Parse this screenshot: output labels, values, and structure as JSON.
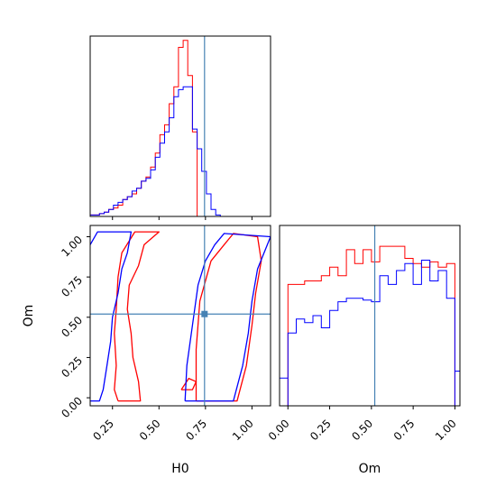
{
  "chart_data": [
    {
      "type": "histogram",
      "panel": "H0 marginal",
      "truth": 0.745,
      "series": [
        {
          "color": "#ff0000",
          "step": 0.025,
          "x_start": 0.13,
          "counts": [
            1,
            1,
            2,
            3,
            5,
            6,
            8,
            12,
            14,
            16,
            20,
            25,
            28,
            35,
            45,
            58,
            65,
            80,
            92,
            120,
            125,
            100,
            60,
            0,
            0,
            0,
            0,
            0
          ]
        },
        {
          "color": "#0000ff",
          "step": 0.025,
          "x_start": 0.13,
          "counts": [
            1,
            1,
            2,
            3,
            5,
            8,
            10,
            12,
            14,
            18,
            20,
            25,
            27,
            33,
            42,
            52,
            60,
            70,
            85,
            90,
            92,
            92,
            62,
            48,
            32,
            16,
            5,
            1
          ]
        }
      ]
    },
    {
      "type": "contour",
      "panel": "H0 vs Om",
      "xlabel": "H0",
      "ylabel": "Om",
      "xlim": [
        0.13,
        1.1
      ],
      "ylim": [
        -0.05,
        1.07
      ],
      "xticks": [
        "0.25",
        "0.50",
        "0.75",
        "1.00"
      ],
      "yticks": [
        "0.00",
        "0.25",
        "0.50",
        "0.75",
        "1.00"
      ],
      "truth": {
        "x": 0.745,
        "y": 0.52
      },
      "series": [
        {
          "color": "#ff0000",
          "contours": [
            [
              [
                0.28,
                -0.02
              ],
              [
                0.4,
                -0.02
              ],
              [
                0.39,
                0.1
              ],
              [
                0.36,
                0.25
              ],
              [
                0.35,
                0.4
              ],
              [
                0.33,
                0.55
              ],
              [
                0.34,
                0.7
              ],
              [
                0.39,
                0.82
              ],
              [
                0.42,
                0.95
              ],
              [
                0.5,
                1.03
              ],
              [
                0.37,
                1.03
              ],
              [
                0.3,
                0.9
              ],
              [
                0.28,
                0.75
              ],
              [
                0.27,
                0.55
              ],
              [
                0.26,
                0.4
              ],
              [
                0.27,
                0.2
              ],
              [
                0.26,
                0.05
              ],
              [
                0.28,
                -0.02
              ]
            ],
            [
              [
                0.7,
                -0.02
              ],
              [
                0.92,
                -0.02
              ],
              [
                0.97,
                0.2
              ],
              [
                1.0,
                0.45
              ],
              [
                1.02,
                0.65
              ],
              [
                1.05,
                0.85
              ],
              [
                1.03,
                1.0
              ],
              [
                0.9,
                1.02
              ],
              [
                0.85,
                0.95
              ],
              [
                0.78,
                0.85
              ],
              [
                0.72,
                0.6
              ],
              [
                0.7,
                0.3
              ],
              [
                0.7,
                -0.02
              ]
            ],
            [
              [
                0.62,
                0.05
              ],
              [
                0.68,
                0.05
              ],
              [
                0.7,
                0.1
              ],
              [
                0.66,
                0.12
              ],
              [
                0.62,
                0.05
              ]
            ]
          ]
        },
        {
          "color": "#0000ff",
          "contours": [
            [
              [
                0.13,
                0.95
              ],
              [
                0.17,
                1.03
              ],
              [
                0.35,
                1.03
              ],
              [
                0.33,
                0.9
              ],
              [
                0.3,
                0.8
              ],
              [
                0.28,
                0.65
              ],
              [
                0.25,
                0.5
              ],
              [
                0.24,
                0.35
              ],
              [
                0.22,
                0.2
              ],
              [
                0.2,
                0.05
              ],
              [
                0.18,
                -0.02
              ],
              [
                0.13,
                -0.02
              ]
            ],
            [
              [
                0.64,
                -0.02
              ],
              [
                0.9,
                -0.02
              ],
              [
                0.95,
                0.2
              ],
              [
                0.98,
                0.4
              ],
              [
                1.0,
                0.6
              ],
              [
                1.03,
                0.8
              ],
              [
                1.1,
                1.0
              ],
              [
                0.85,
                1.02
              ],
              [
                0.8,
                0.95
              ],
              [
                0.75,
                0.85
              ],
              [
                0.71,
                0.7
              ],
              [
                0.68,
                0.45
              ],
              [
                0.65,
                0.2
              ],
              [
                0.64,
                -0.02
              ]
            ]
          ]
        }
      ]
    },
    {
      "type": "histogram",
      "panel": "Om marginal",
      "xlabel": "Om",
      "xticks": [
        "0.00",
        "0.25",
        "0.50",
        "0.75",
        "1.00"
      ],
      "truth": 0.52,
      "series": [
        {
          "color": "#ff0000",
          "step": 0.05,
          "x_start": 0.0,
          "counts": [
            70,
            70,
            72,
            72,
            75,
            80,
            75,
            90,
            82,
            90,
            83,
            92,
            92,
            92,
            85,
            82,
            80,
            83,
            80,
            82
          ]
        },
        {
          "color": "#0000ff",
          "step": 0.05,
          "x_start": 0.0,
          "counts": [
            42,
            50,
            48,
            52,
            45,
            55,
            60,
            62,
            62,
            61,
            60,
            75,
            70,
            78,
            82,
            70,
            84,
            72,
            78,
            62
          ]
        }
      ]
    }
  ]
}
